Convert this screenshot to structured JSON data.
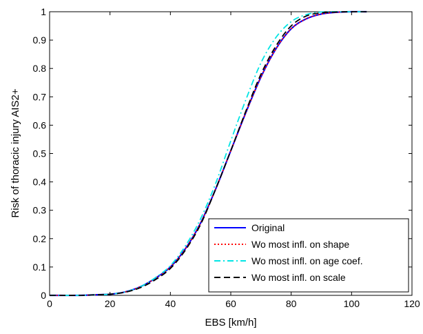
{
  "chart_data": {
    "type": "line",
    "xlabel": "EBS [km/h]",
    "ylabel": "Risk of thoracic injury AIS2+",
    "xlim": [
      0,
      120
    ],
    "ylim": [
      0,
      1
    ],
    "x_ticks": [
      0,
      20,
      40,
      60,
      80,
      100,
      120
    ],
    "y_ticks": [
      0,
      0.1,
      0.2,
      0.3,
      0.4,
      0.5,
      0.6,
      0.7,
      0.8,
      0.9,
      1
    ],
    "x_tick_labels": [
      "0",
      "20",
      "40",
      "60",
      "80",
      "100",
      "120"
    ],
    "y_tick_labels": [
      "0",
      "0.1",
      "0.2",
      "0.3",
      "0.4",
      "0.5",
      "0.6",
      "0.7",
      "0.8",
      "0.9",
      "1"
    ],
    "grid": false,
    "legend_position": "bottom-right",
    "x": [
      0,
      10,
      15,
      20,
      25,
      30,
      35,
      40,
      45,
      50,
      55,
      60,
      65,
      70,
      75,
      80,
      85,
      90,
      95,
      100,
      105
    ],
    "series": [
      {
        "name": "Original",
        "color": "#0000ff",
        "dash": "solid",
        "values": [
          0,
          0,
          0.002,
          0.004,
          0.012,
          0.03,
          0.06,
          0.1,
          0.165,
          0.255,
          0.375,
          0.51,
          0.645,
          0.77,
          0.87,
          0.94,
          0.975,
          0.992,
          0.998,
          1.0,
          1.0
        ]
      },
      {
        "name": "Wo most infl. on shape",
        "color": "#ff0000",
        "dash": "dotted",
        "values": [
          0,
          0,
          0.002,
          0.004,
          0.012,
          0.03,
          0.06,
          0.1,
          0.165,
          0.255,
          0.375,
          0.51,
          0.645,
          0.77,
          0.87,
          0.94,
          0.975,
          0.992,
          0.998,
          1.0,
          1.0
        ]
      },
      {
        "name": "Wo most infl. on age coef.",
        "color": "#00e5e5",
        "dash": "dashdot",
        "values": [
          0,
          0,
          0.002,
          0.004,
          0.012,
          0.03,
          0.062,
          0.105,
          0.175,
          0.27,
          0.395,
          0.545,
          0.69,
          0.82,
          0.91,
          0.965,
          0.99,
          0.999,
          1.0,
          1.0,
          1.0
        ]
      },
      {
        "name": "Wo most infl. on scale",
        "color": "#000000",
        "dash": "dashed",
        "values": [
          0,
          0,
          0.002,
          0.004,
          0.011,
          0.027,
          0.055,
          0.095,
          0.16,
          0.25,
          0.375,
          0.51,
          0.65,
          0.78,
          0.88,
          0.95,
          0.985,
          0.996,
          0.999,
          1.0,
          1.0
        ]
      }
    ]
  }
}
